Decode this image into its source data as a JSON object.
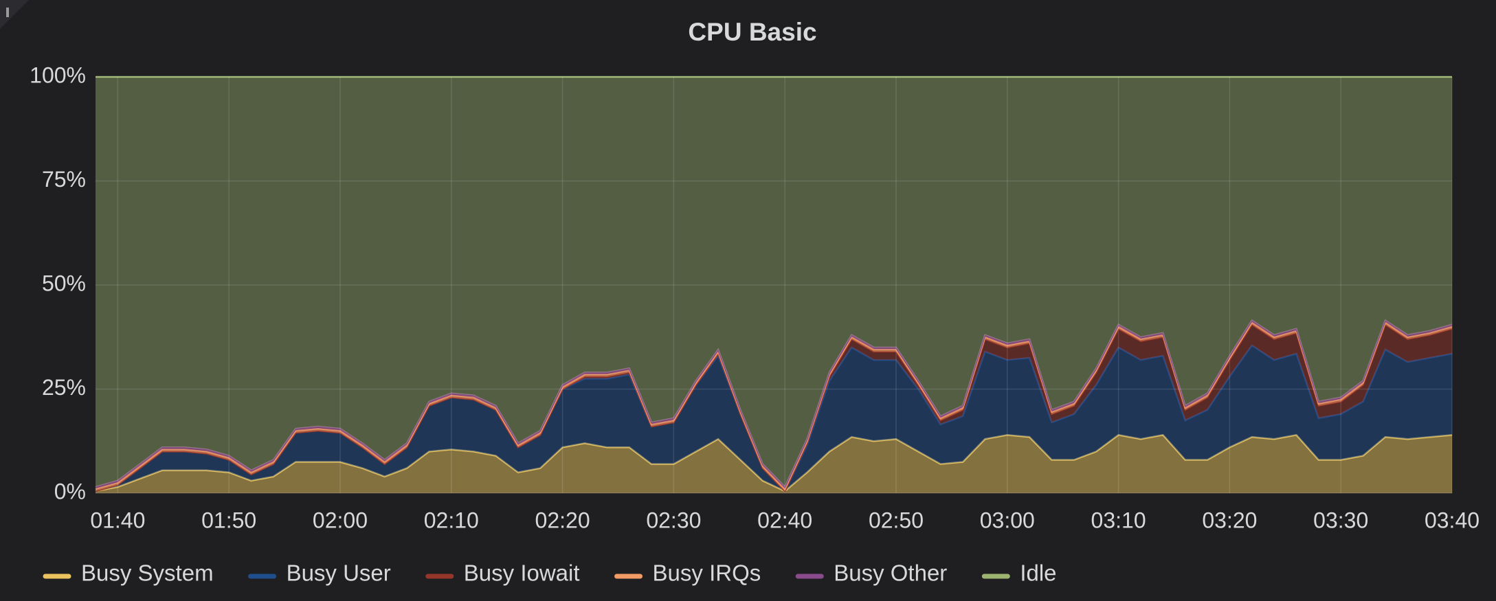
{
  "chart_data": {
    "type": "stacked_area",
    "title": "CPU Basic",
    "x": [
      "01:38",
      "01:40",
      "01:42",
      "01:44",
      "01:46",
      "01:48",
      "01:50",
      "01:52",
      "01:54",
      "01:56",
      "01:58",
      "02:00",
      "02:02",
      "02:04",
      "02:06",
      "02:08",
      "02:10",
      "02:12",
      "02:14",
      "02:16",
      "02:18",
      "02:20",
      "02:22",
      "02:24",
      "02:26",
      "02:28",
      "02:30",
      "02:32",
      "02:34",
      "02:36",
      "02:38",
      "02:40",
      "02:42",
      "02:44",
      "02:46",
      "02:48",
      "02:50",
      "02:52",
      "02:54",
      "02:56",
      "02:58",
      "03:00",
      "03:02",
      "03:04",
      "03:06",
      "03:08",
      "03:10",
      "03:12",
      "03:14",
      "03:16",
      "03:18",
      "03:20",
      "03:22",
      "03:24",
      "03:26",
      "03:28",
      "03:30",
      "03:32",
      "03:34",
      "03:36",
      "03:38",
      "03:40"
    ],
    "series": [
      {
        "name": "Busy System",
        "color": "#eac35e",
        "values": [
          0.5,
          1.5,
          3.5,
          5.5,
          5.5,
          5.5,
          5,
          3,
          4,
          7.5,
          7.5,
          7.5,
          6,
          4,
          6,
          10,
          10.5,
          10,
          9,
          5,
          6,
          11,
          12,
          11,
          11,
          7,
          7,
          10,
          13,
          8,
          3,
          0.5,
          5,
          10,
          13.5,
          12.5,
          13,
          10,
          7,
          7.5,
          13,
          14,
          13.5,
          8,
          8,
          10,
          14,
          13,
          14,
          8,
          8,
          11,
          13.5,
          13,
          14,
          8,
          8,
          9,
          13.5,
          13,
          13.5,
          14
        ]
      },
      {
        "name": "Busy User",
        "color": "#1f4e8c",
        "values": [
          0,
          0.5,
          2.5,
          4.5,
          4.5,
          4,
          3,
          1.5,
          3,
          7,
          7.5,
          7,
          5,
          3,
          5,
          11,
          12.5,
          12.5,
          11,
          6,
          8,
          14,
          15.5,
          16.5,
          17.5,
          9,
          10,
          16,
          20,
          11,
          3,
          0,
          6.5,
          17,
          21.5,
          19.5,
          19,
          15,
          9.5,
          11,
          21,
          18,
          19,
          9,
          11,
          16,
          21,
          19,
          19,
          9.5,
          12,
          17,
          22,
          19,
          19.5,
          10,
          11,
          13,
          21,
          18.5,
          19,
          19.5
        ]
      },
      {
        "name": "Busy Iowait",
        "color": "#96362a",
        "values": [
          0,
          0,
          0,
          0,
          0,
          0,
          0,
          0,
          0,
          0,
          0,
          0,
          0,
          0,
          0,
          0,
          0,
          0,
          0,
          0,
          0,
          0,
          0.5,
          0.5,
          0.5,
          0,
          0,
          0,
          0.5,
          0,
          0,
          0,
          0.5,
          1,
          2,
          2,
          2,
          1,
          1,
          1.5,
          3,
          3,
          3.5,
          2,
          2,
          3,
          4.5,
          4.5,
          4.5,
          2.5,
          3,
          4,
          5,
          5,
          5,
          3,
          3,
          4,
          6,
          5.5,
          5.5,
          6
        ]
      },
      {
        "name": "Busy IRQs",
        "color": "#f29b64",
        "values": [
          0.5,
          0.5,
          0.5,
          0.5,
          0.5,
          0.5,
          0.5,
          0.5,
          0.5,
          0.5,
          0.5,
          0.5,
          0.5,
          0.5,
          0.5,
          0.5,
          0.5,
          0.5,
          0.5,
          0.5,
          0.5,
          0.5,
          0.5,
          0.5,
          0.5,
          0.5,
          0.5,
          0.5,
          0.5,
          0.5,
          0.5,
          0.5,
          0.5,
          0.5,
          0.5,
          0.5,
          0.5,
          0.5,
          0.5,
          0.5,
          0.5,
          0.5,
          0.5,
          0.5,
          0.5,
          0.5,
          0.5,
          0.5,
          0.5,
          0.5,
          0.5,
          0.5,
          0.5,
          0.5,
          0.5,
          0.5,
          0.5,
          0.5,
          0.5,
          0.5,
          0.5,
          0.5
        ]
      },
      {
        "name": "Busy Other",
        "color": "#8a4b8c",
        "values": [
          0.5,
          0.5,
          0.5,
          0.5,
          0.5,
          0.5,
          0.5,
          0.5,
          0.5,
          0.5,
          0.5,
          0.5,
          0.5,
          0.5,
          0.5,
          0.5,
          0.5,
          0.5,
          0.5,
          0.5,
          0.5,
          0.5,
          0.5,
          0.5,
          0.5,
          0.5,
          0.5,
          0.5,
          0.5,
          0.5,
          0.5,
          0.5,
          0.5,
          0.5,
          0.5,
          0.5,
          0.5,
          0.5,
          0.5,
          0.5,
          0.5,
          0.5,
          0.5,
          0.5,
          0.5,
          0.5,
          0.5,
          0.5,
          0.5,
          0.5,
          0.5,
          0.5,
          0.5,
          0.5,
          0.5,
          0.5,
          0.5,
          0.5,
          0.5,
          0.5,
          0.5,
          0.5
        ]
      },
      {
        "name": "Idle",
        "color": "#9cb46f",
        "values": [
          98.5,
          97,
          93,
          89,
          89,
          89.5,
          91,
          94.5,
          92,
          84.5,
          84,
          84.5,
          88,
          92,
          88,
          78,
          76,
          76.5,
          79,
          88,
          85,
          74,
          71,
          71,
          70,
          83,
          82,
          73,
          65.5,
          80,
          93,
          98.5,
          87,
          71,
          62,
          65,
          65,
          73,
          81.5,
          79,
          62,
          64,
          63,
          80,
          78,
          70,
          59.5,
          62.5,
          61.5,
          79,
          76,
          67,
          58.5,
          62,
          60.5,
          78,
          77,
          73,
          58.5,
          62,
          61,
          59.5
        ]
      }
    ],
    "xlim": [
      "01:38",
      "03:40"
    ],
    "xticks": [
      "01:40",
      "01:50",
      "02:00",
      "02:10",
      "02:20",
      "02:30",
      "02:40",
      "02:50",
      "03:00",
      "03:10",
      "03:20",
      "03:30",
      "03:40"
    ],
    "ylim": [
      0,
      100
    ],
    "yticks": [
      {
        "value": 0,
        "label": "0%"
      },
      {
        "value": 25,
        "label": "25%"
      },
      {
        "value": 50,
        "label": "50%"
      },
      {
        "value": 75,
        "label": "75%"
      },
      {
        "value": 100,
        "label": "100%"
      }
    ],
    "grid": true,
    "stacked": true,
    "legend": "bottom"
  }
}
